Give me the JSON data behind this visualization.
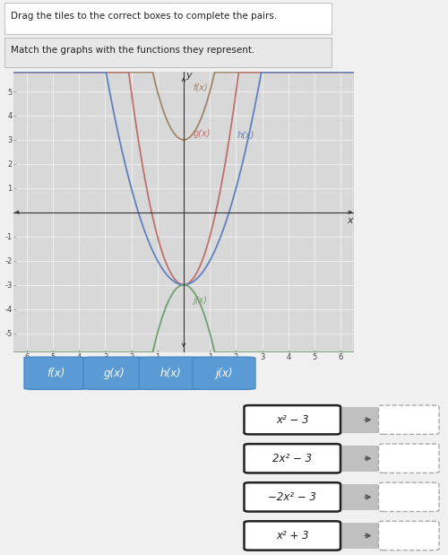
{
  "title_top": "Drag the tiles to the correct boxes to complete the pairs.",
  "subtitle": "Match the graphs with the functions they represent.",
  "page_bg": "#f0f0f0",
  "graph_bg": "#d8d8d8",
  "xlim": [
    -6.5,
    6.5
  ],
  "ylim": [
    -5.8,
    5.8
  ],
  "curve_f_color": "#a0856a",
  "curve_g_color": "#c0706a",
  "curve_h_color": "#6080c0",
  "curve_j_color": "#70a070",
  "tile_color": "#5b9bd5",
  "tile_labels": [
    "f(x)",
    "g(x)",
    "h(x)",
    "j(x)"
  ],
  "formulas": [
    "x² − 3",
    "2x² − 3",
    "−2x² − 3",
    "x² + 3"
  ],
  "formula_fontsize": 8.5,
  "axis_label_x": "x",
  "axis_label_y": "y"
}
